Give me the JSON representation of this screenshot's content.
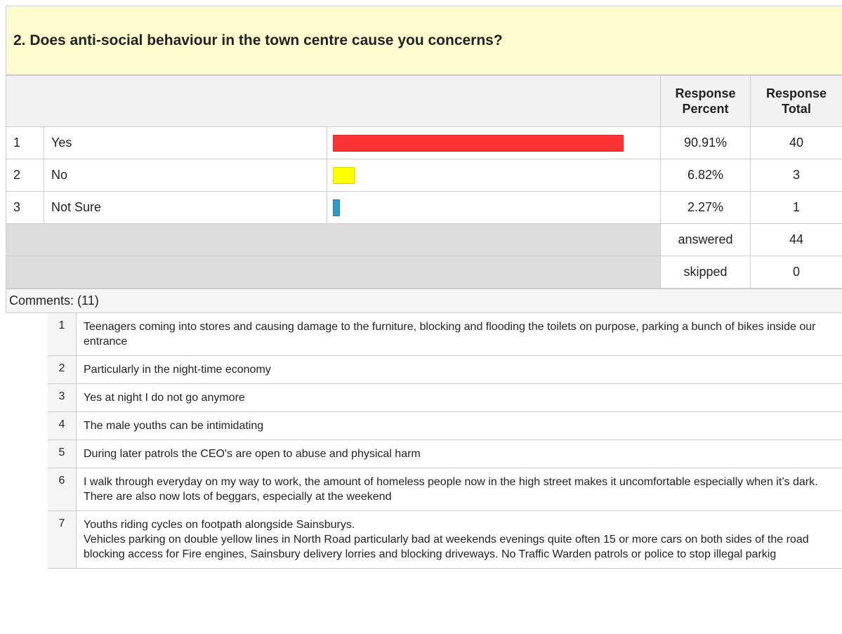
{
  "header": {
    "title": "2. Does anti-social behaviour in the town centre cause you concerns?"
  },
  "table": {
    "columns": [
      "Response Percent",
      "Response Total"
    ],
    "rows": [
      {
        "index": "1",
        "answer": "Yes",
        "percent": 90.91,
        "percent_label": "90.91%",
        "total": 40,
        "color": "#ff3333"
      },
      {
        "index": "2",
        "answer": "No",
        "percent": 6.82,
        "percent_label": "6.82%",
        "total": 3,
        "color": "#ffff00"
      },
      {
        "index": "3",
        "answer": "Not Sure",
        "percent": 2.27,
        "percent_label": "2.27%",
        "total": 1,
        "color": "#3399cc"
      }
    ],
    "summary": [
      {
        "label": "answered",
        "value": 44
      },
      {
        "label": "skipped",
        "value": 0
      }
    ]
  },
  "comments": {
    "heading": "Comments: (11)",
    "items": [
      {
        "index": "1",
        "text": "Teenagers coming into stores and causing damage to the furniture, blocking and flooding the toilets on purpose, parking a bunch of bikes inside our entrance"
      },
      {
        "index": "2",
        "text": "Particularly in the night-time economy"
      },
      {
        "index": "3",
        "text": "Yes at night I do not go anymore"
      },
      {
        "index": "4",
        "text": "The male youths can be intimidating"
      },
      {
        "index": "5",
        "text": "During later patrols the CEO's are open to abuse and physical harm"
      },
      {
        "index": "6",
        "text": "I walk through everyday on my way to work, the amount of homeless people now in the high street makes it uncomfortable especially when it’s dark. There are also now lots of beggars, especially at the weekend"
      },
      {
        "index": "7",
        "text": "Youths riding cycles on footpath alongside Sainsburys.\nVehicles parking on double yellow lines in North Road particularly bad at weekends evenings quite often 15 or more cars on both sides of the road blocking access for Fire engines, Sainsbury delivery lorries and blocking driveways. No Traffic Warden patrols or police to stop illegal parkig"
      }
    ]
  }
}
